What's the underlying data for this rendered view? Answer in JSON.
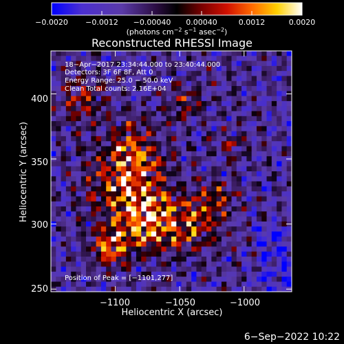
{
  "colorbar": {
    "ticks": [
      "−0.0020",
      "−0.0012",
      "−0.00040",
      "0.00040",
      "0.0012",
      "0.0020"
    ],
    "unit_main": "(photons cm",
    "unit_sup1": "−2",
    "unit_mid1": " s",
    "unit_sup2": "−1",
    "unit_mid2": " asec",
    "unit_sup3": "−2",
    "unit_end": ")",
    "range": [
      -0.002,
      0.002
    ]
  },
  "chart_data": {
    "type": "heatmap",
    "title": "Reconstructed RHESSI Image",
    "xlabel": "Heliocentric X (arcsec)",
    "ylabel": "Heliocentric Y (arcsec)",
    "xlim": [
      -1150,
      -963
    ],
    "ylim": [
      248,
      433
    ],
    "x_ticks": [
      -1100,
      -1050,
      -1000
    ],
    "x_tick_labels": [
      "−1100",
      "−1050",
      "−1000"
    ],
    "y_ticks": [
      250,
      300,
      350,
      400
    ],
    "y_tick_labels": [
      "250",
      "300",
      "350",
      "400"
    ],
    "annotations": [
      "18−Apr−2017 23:34:44.000 to 23:40:44.000",
      "Detectors: 3F 6F 8F, Att 0",
      "Energy Range: 25.0 − 50.0 keV",
      "Clean    Total counts: 2.16E+04"
    ],
    "peak_label": "Position of Peak = [−1101,277]",
    "grid": false,
    "colors": {
      "colormap": [
        "#0000ff",
        "#5a3ab0",
        "#3a1050",
        "#000000",
        "#8b0000",
        "#ff2a00",
        "#ff8c00",
        "#ffe000",
        "#ffffff"
      ],
      "axes": "#ffffff",
      "text": "#ffffff"
    }
  },
  "footer": {
    "date": "6−Sep−2022 10:22"
  }
}
